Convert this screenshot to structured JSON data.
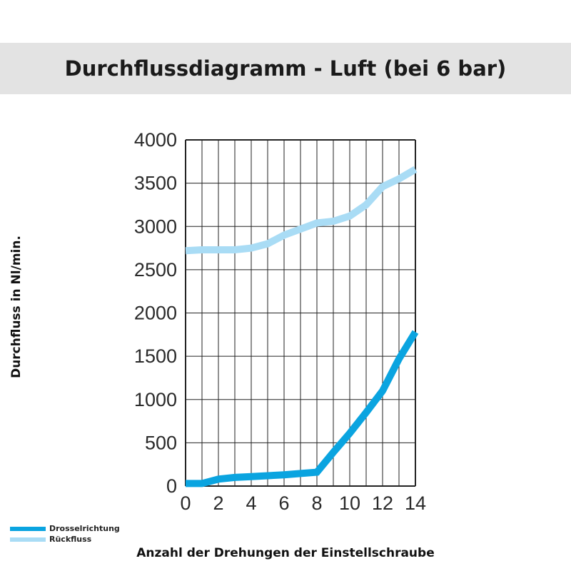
{
  "colors": {
    "title_band": "#e3e3e3",
    "grid": "#222222",
    "series_drossel": "#0aa4e0",
    "series_rueck": "#a9dcf5"
  },
  "chart_data": {
    "type": "line",
    "title": "Durchflussdiagramm - Luft (bei 6 bar)",
    "xlabel": "Anzahl der Drehungen der Einstellschraube",
    "ylabel": "Durchfluss in Nl/min.",
    "xlim": [
      0,
      14
    ],
    "ylim": [
      0,
      4000
    ],
    "xticks": [
      0,
      2,
      4,
      6,
      8,
      10,
      12,
      14
    ],
    "yticks": [
      0,
      500,
      1000,
      1500,
      2000,
      2500,
      3000,
      3500,
      4000
    ],
    "grid": true,
    "legend_position": "bottom-left",
    "series": [
      {
        "name": "Drosselrichtung",
        "color": "#0aa4e0",
        "x": [
          0,
          1,
          2,
          3,
          4,
          5,
          6,
          7,
          8,
          9,
          10,
          11,
          12,
          13,
          14
        ],
        "y": [
          30,
          30,
          80,
          100,
          110,
          120,
          130,
          145,
          160,
          390,
          610,
          850,
          1100,
          1470,
          1780
        ]
      },
      {
        "name": "Rückfluss",
        "color": "#a9dcf5",
        "x": [
          0,
          1,
          2,
          3,
          4,
          5,
          6,
          7,
          8,
          9,
          10,
          11,
          12,
          13,
          14
        ],
        "y": [
          2720,
          2730,
          2730,
          2730,
          2750,
          2800,
          2900,
          2970,
          3040,
          3060,
          3120,
          3250,
          3460,
          3550,
          3660
        ]
      }
    ]
  }
}
